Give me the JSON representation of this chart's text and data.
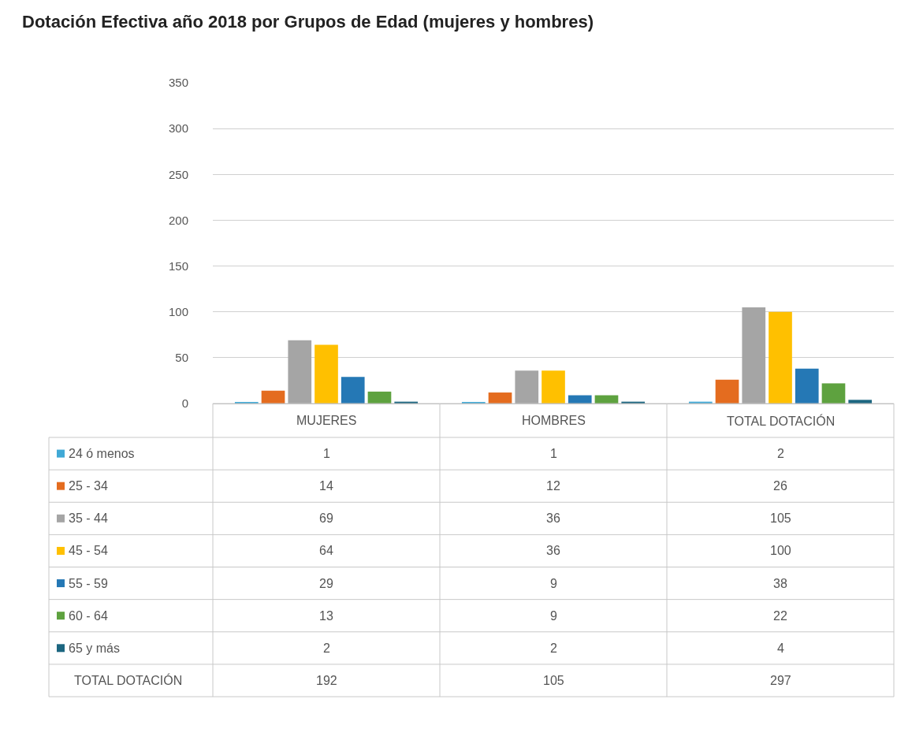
{
  "chart_data": {
    "type": "bar",
    "title": "Dotación Efectiva año 2018 por Grupos de Edad (mujeres y hombres)",
    "categories": [
      "MUJERES",
      "HOMBRES",
      "TOTAL DOTACIÓN"
    ],
    "series": [
      {
        "name": "24 ó menos",
        "color": "#41a9d6",
        "values": [
          1,
          1,
          2
        ]
      },
      {
        "name": "25 - 34",
        "color": "#e46c1f",
        "values": [
          14,
          12,
          26
        ]
      },
      {
        "name": "35 - 44",
        "color": "#a5a5a5",
        "values": [
          69,
          36,
          105
        ]
      },
      {
        "name": "45 - 54",
        "color": "#ffc000",
        "values": [
          64,
          36,
          100
        ]
      },
      {
        "name": "55 - 59",
        "color": "#2578b5",
        "values": [
          29,
          9,
          38
        ]
      },
      {
        "name": "60 - 64",
        "color": "#5ea23f",
        "values": [
          13,
          9,
          22
        ]
      },
      {
        "name": "65 y más",
        "color": "#1c6680",
        "values": [
          2,
          2,
          4
        ]
      }
    ],
    "ylim": [
      0,
      350
    ],
    "yticks": [
      0,
      50,
      100,
      150,
      200,
      250,
      300,
      350
    ],
    "grid": "y",
    "legend": "bottom",
    "data_labels": true,
    "annotations": [
      "TOTAL DOTACIÓN",
      "192",
      "105",
      "297"
    ]
  }
}
